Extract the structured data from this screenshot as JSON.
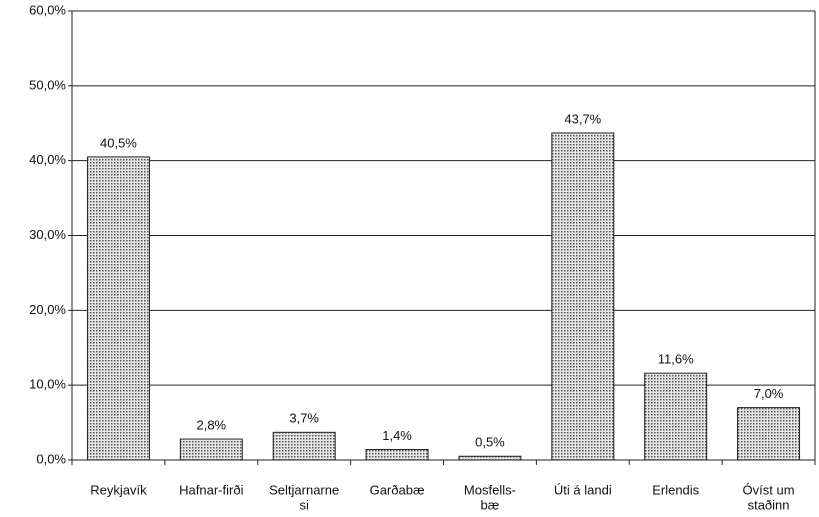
{
  "chart_data": {
    "type": "bar",
    "categories": [
      [
        "Reykjavík"
      ],
      [
        "Hafnar-firði"
      ],
      [
        "Seltjarnarne",
        "si"
      ],
      [
        "Garðabæ"
      ],
      [
        "Mosfells-",
        "bæ"
      ],
      [
        "Úti á landi"
      ],
      [
        "Erlendis"
      ],
      [
        "Óvíst um",
        "staðinn"
      ]
    ],
    "values": [
      40.5,
      2.8,
      3.7,
      1.4,
      0.5,
      43.7,
      11.6,
      7.0
    ],
    "value_labels": [
      "40,5%",
      "2,8%",
      "3,7%",
      "1,4%",
      "0,5%",
      "43,7%",
      "11,6%",
      "7,0%"
    ],
    "color": "#b0b0b0",
    "ylim": [
      0,
      60
    ],
    "yticks": [
      {
        "value": 0,
        "label": "0,0%"
      },
      {
        "value": 10,
        "label": "10,0%"
      },
      {
        "value": 20,
        "label": "20,0%"
      },
      {
        "value": 30,
        "label": "30,0%"
      },
      {
        "value": 40,
        "label": "40,0%"
      },
      {
        "value": 50,
        "label": "50,0%"
      },
      {
        "value": 60,
        "label": "60,0%"
      }
    ],
    "grid": true
  }
}
